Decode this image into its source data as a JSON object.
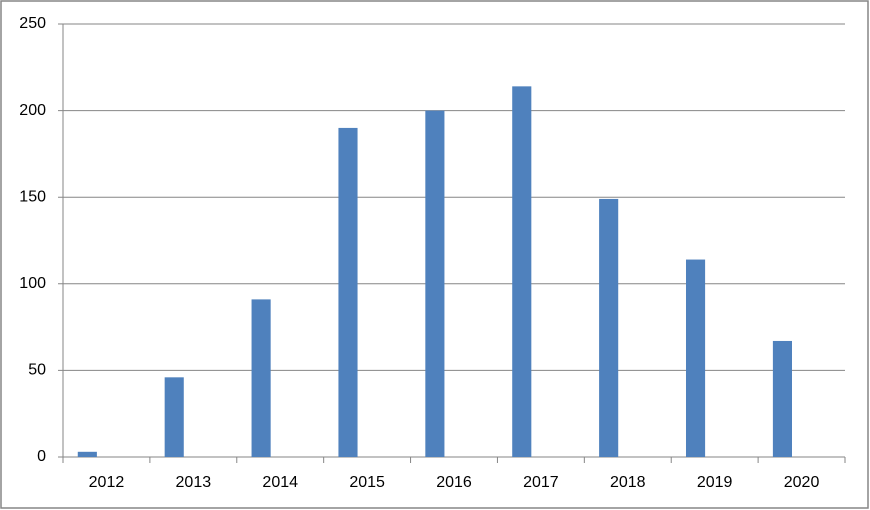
{
  "chart_data": {
    "type": "bar",
    "categories": [
      "2012",
      "2013",
      "2014",
      "2015",
      "2016",
      "2017",
      "2018",
      "2019",
      "2020"
    ],
    "values": [
      3,
      46,
      91,
      190,
      200,
      214,
      149,
      114,
      67
    ],
    "color": "#4f81bd",
    "ylim": [
      0,
      250
    ],
    "yticks": [
      0,
      50,
      100,
      150,
      200,
      250
    ],
    "grid": true
  }
}
